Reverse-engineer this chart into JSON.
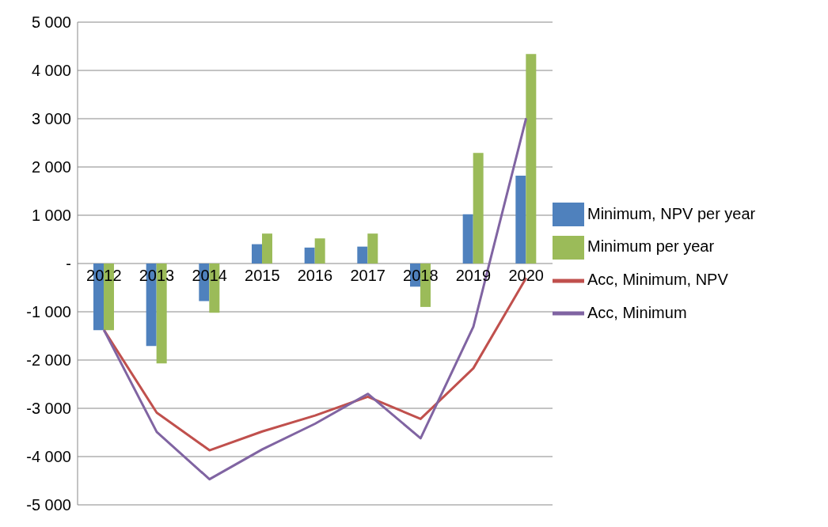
{
  "chart_data": {
    "type": "bar",
    "categories": [
      "2012",
      "2013",
      "2014",
      "2015",
      "2016",
      "2017",
      "2018",
      "2019",
      "2020"
    ],
    "series": [
      {
        "name": "Minimum, NPV per year",
        "color": "#4f81bd",
        "values": [
          -1380,
          -1710,
          -780,
          400,
          330,
          350,
          -480,
          1020,
          1820
        ]
      },
      {
        "name": "Minimum per year",
        "color": "#9bbb59",
        "values": [
          -1380,
          -2070,
          -1020,
          620,
          520,
          620,
          -900,
          2290,
          4340
        ]
      },
      {
        "name": "Acc, Minimum, NPV",
        "type": "line",
        "color": "#c0504d",
        "values": [
          -1380,
          -3090,
          -3870,
          -3480,
          -3150,
          -2760,
          -3220,
          -2170,
          -300
        ]
      },
      {
        "name": "Acc, Minimum",
        "type": "line",
        "color": "#8064a2",
        "values": [
          -1380,
          -3490,
          -4470,
          -3850,
          -3320,
          -2700,
          -3620,
          -1310,
          3010
        ]
      }
    ],
    "ylim": [
      -5000,
      5000
    ],
    "yticks": [
      {
        "value": -5000,
        "label": "-5 000"
      },
      {
        "value": -4000,
        "label": "-4 000"
      },
      {
        "value": -3000,
        "label": "-3 000"
      },
      {
        "value": -2000,
        "label": "-2 000"
      },
      {
        "value": -1000,
        "label": "-1 000"
      },
      {
        "value": 0,
        "label": "-"
      },
      {
        "value": 1000,
        "label": "1 000"
      },
      {
        "value": 2000,
        "label": "2 000"
      },
      {
        "value": 3000,
        "label": "3 000"
      },
      {
        "value": 4000,
        "label": "4 000"
      },
      {
        "value": 5000,
        "label": "5 000"
      }
    ],
    "grid": "y",
    "legend": "right",
    "marker": "none"
  }
}
